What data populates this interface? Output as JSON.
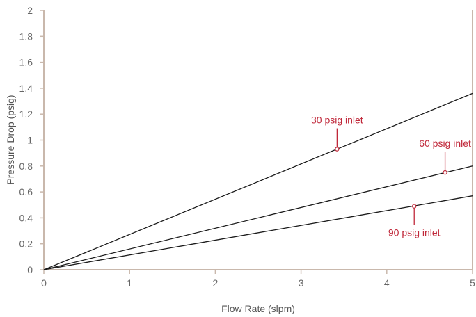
{
  "chart_data": {
    "type": "line",
    "xlabel": "Flow Rate (slpm)",
    "ylabel": "Pressure Drop (psig)",
    "xlim": [
      0,
      5
    ],
    "ylim": [
      0,
      2
    ],
    "x_ticks": [
      "0",
      "1",
      "2",
      "3",
      "4",
      "5"
    ],
    "y_ticks": [
      "0",
      "0.2",
      "0.4",
      "0.6",
      "0.8",
      "1",
      "1.2",
      "1.4",
      "1.6",
      "1.8",
      "2"
    ],
    "grid": false,
    "series": [
      {
        "name": "30 psig inlet",
        "x": [
          0,
          5
        ],
        "y": [
          0,
          1.36
        ]
      },
      {
        "name": "60 psig inlet",
        "x": [
          0,
          5
        ],
        "y": [
          0,
          0.8
        ]
      },
      {
        "name": "90 psig inlet",
        "x": [
          0,
          5
        ],
        "y": [
          0,
          0.57
        ]
      }
    ],
    "annotations": [
      {
        "text": "30 psig inlet",
        "x": 3.42,
        "y": 0.93,
        "placement": "above"
      },
      {
        "text": "60 psig inlet",
        "x": 4.68,
        "y": 0.75,
        "placement": "above"
      },
      {
        "text": "90 psig inlet",
        "x": 4.32,
        "y": 0.49,
        "placement": "below"
      }
    ],
    "colors": {
      "line": "#1a1a1a",
      "annotation": "#c0283a",
      "frame": "#c9b8ac",
      "text": "#666666"
    }
  }
}
